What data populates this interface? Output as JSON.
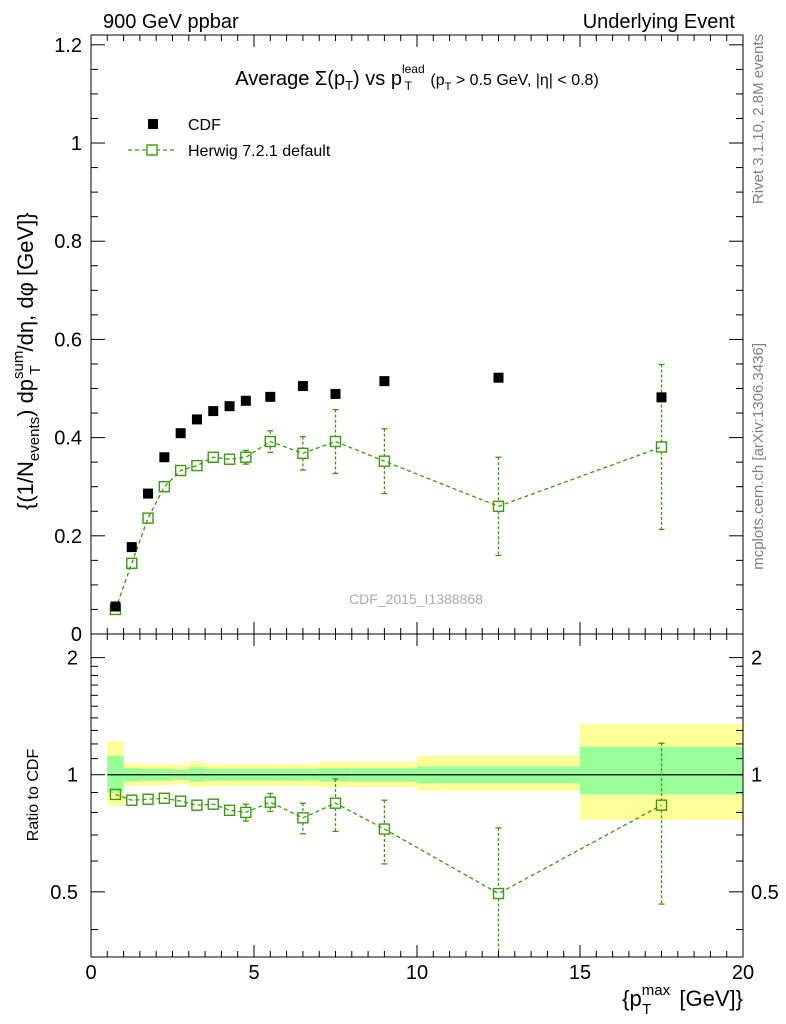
{
  "header": {
    "left": "900 GeV ppbar",
    "right": "Underlying Event"
  },
  "side_labels": {
    "rivet": "Rivet 3.1.10,  2.8M events",
    "mcplots": "mcplots.cern.ch [arXiv:1306.3436]"
  },
  "watermark": "CDF_2015_I1388868",
  "colors": {
    "data": "#000000",
    "mc": "#3a9a0a",
    "band_inner": "#99ff99",
    "band_outer": "#ffff99"
  },
  "chart_data": [
    {
      "type": "scatter",
      "panel": "main",
      "title": {
        "prefix": "Average ",
        "sigma": "Σ(p",
        "sub_T": "T",
        "close": ")",
        "vs": " vs p",
        "sup_lead": "lead",
        "sub_T2": "T",
        "cut": " (p",
        "sub_T3": "T",
        "cut_rest": " > 0.5 GeV, |η| < 0.8)"
      },
      "ylabel": {
        "a": "{(1/N",
        "sub_events": "events",
        "b": ") dp",
        "sup_sum": "sum",
        "sub_T": "T",
        "c": "/dη, dφ [GeV]}"
      },
      "xlim": [
        0,
        20
      ],
      "ylim": [
        0,
        1.22
      ],
      "yticks": [
        0,
        0.2,
        0.4,
        0.6,
        0.8,
        1,
        1.2
      ],
      "ytick_labels": [
        "0",
        "0.2",
        "0.4",
        "0.6",
        "0.8",
        "1",
        "1.2"
      ],
      "legend": {
        "placement": "top-left",
        "entries": [
          "CDF",
          "Herwig 7.2.1 default"
        ]
      },
      "series": [
        {
          "name": "CDF",
          "style": "filled-square",
          "x": [
            0.75,
            1.25,
            1.75,
            2.25,
            2.75,
            3.25,
            3.75,
            4.25,
            4.75,
            5.5,
            6.5,
            7.5,
            9.0,
            12.5,
            17.5
          ],
          "y": [
            0.056,
            0.177,
            0.286,
            0.36,
            0.409,
            0.437,
            0.454,
            0.464,
            0.475,
            0.483,
            0.505,
            0.489,
            0.515,
            0.522,
            0.482
          ]
        },
        {
          "name": "Herwig 7.2.1 default",
          "style": "open-square-dashed",
          "x": [
            0.75,
            1.25,
            1.75,
            2.25,
            2.75,
            3.25,
            3.75,
            4.25,
            4.75,
            5.5,
            6.5,
            7.5,
            9.0,
            12.5,
            17.5
          ],
          "y": [
            0.05,
            0.144,
            0.236,
            0.3,
            0.333,
            0.343,
            0.36,
            0.356,
            0.36,
            0.392,
            0.368,
            0.392,
            0.352,
            0.26,
            0.381
          ],
          "yerr": [
            0.005,
            0.007,
            0.008,
            0.008,
            0.008,
            0.009,
            0.01,
            0.01,
            0.014,
            0.022,
            0.034,
            0.065,
            0.066,
            0.1,
            0.168
          ]
        }
      ]
    },
    {
      "type": "scatter",
      "panel": "ratio",
      "ylabel": "Ratio to CDF",
      "xlabel": {
        "a": "{p",
        "sup_max": "max",
        "sub_T": "T",
        "b": " [GeV]}"
      },
      "xlim": [
        0,
        20
      ],
      "ylim": [
        0.34,
        2.3
      ],
      "log_y": true,
      "yticks": [
        0.5,
        1,
        2
      ],
      "ytick_labels": [
        "0.5",
        "1",
        "2"
      ],
      "xticks": [
        0,
        5,
        10,
        15,
        20
      ],
      "xtick_labels": [
        "0",
        "5",
        "10",
        "15",
        "20"
      ],
      "band_edges": [
        0.5,
        1.0,
        1.5,
        2.0,
        2.5,
        3.0,
        3.5,
        4.0,
        4.5,
        5.0,
        6.0,
        7.0,
        8.0,
        10.0,
        15.0,
        20.0
      ],
      "band_inner_low": [
        0.9,
        0.96,
        0.965,
        0.965,
        0.97,
        0.96,
        0.965,
        0.965,
        0.965,
        0.965,
        0.965,
        0.96,
        0.96,
        0.95,
        0.89
      ],
      "band_inner_high": [
        1.12,
        1.04,
        1.035,
        1.035,
        1.03,
        1.045,
        1.035,
        1.035,
        1.035,
        1.035,
        1.035,
        1.04,
        1.04,
        1.05,
        1.18
      ],
      "band_outer_low": [
        0.83,
        0.935,
        0.94,
        0.94,
        0.945,
        0.93,
        0.935,
        0.935,
        0.935,
        0.935,
        0.935,
        0.93,
        0.93,
        0.91,
        0.765
      ],
      "band_outer_high": [
        1.22,
        1.07,
        1.065,
        1.065,
        1.06,
        1.08,
        1.065,
        1.065,
        1.065,
        1.065,
        1.065,
        1.08,
        1.08,
        1.12,
        1.35
      ],
      "series": [
        {
          "name": "Herwig 7.2.1 default",
          "x": [
            0.75,
            1.25,
            1.75,
            2.25,
            2.75,
            3.25,
            3.75,
            4.25,
            4.75,
            5.5,
            6.5,
            7.5,
            9.0,
            12.5,
            17.5
          ],
          "y": [
            0.89,
            0.86,
            0.865,
            0.87,
            0.855,
            0.835,
            0.84,
            0.81,
            0.8,
            0.85,
            0.775,
            0.845,
            0.725,
            0.495,
            0.835
          ],
          "yerr": [
            0.02,
            0.02,
            0.02,
            0.02,
            0.02,
            0.02,
            0.025,
            0.025,
            0.04,
            0.045,
            0.07,
            0.13,
            0.135,
            0.235,
            0.37
          ]
        }
      ]
    }
  ]
}
